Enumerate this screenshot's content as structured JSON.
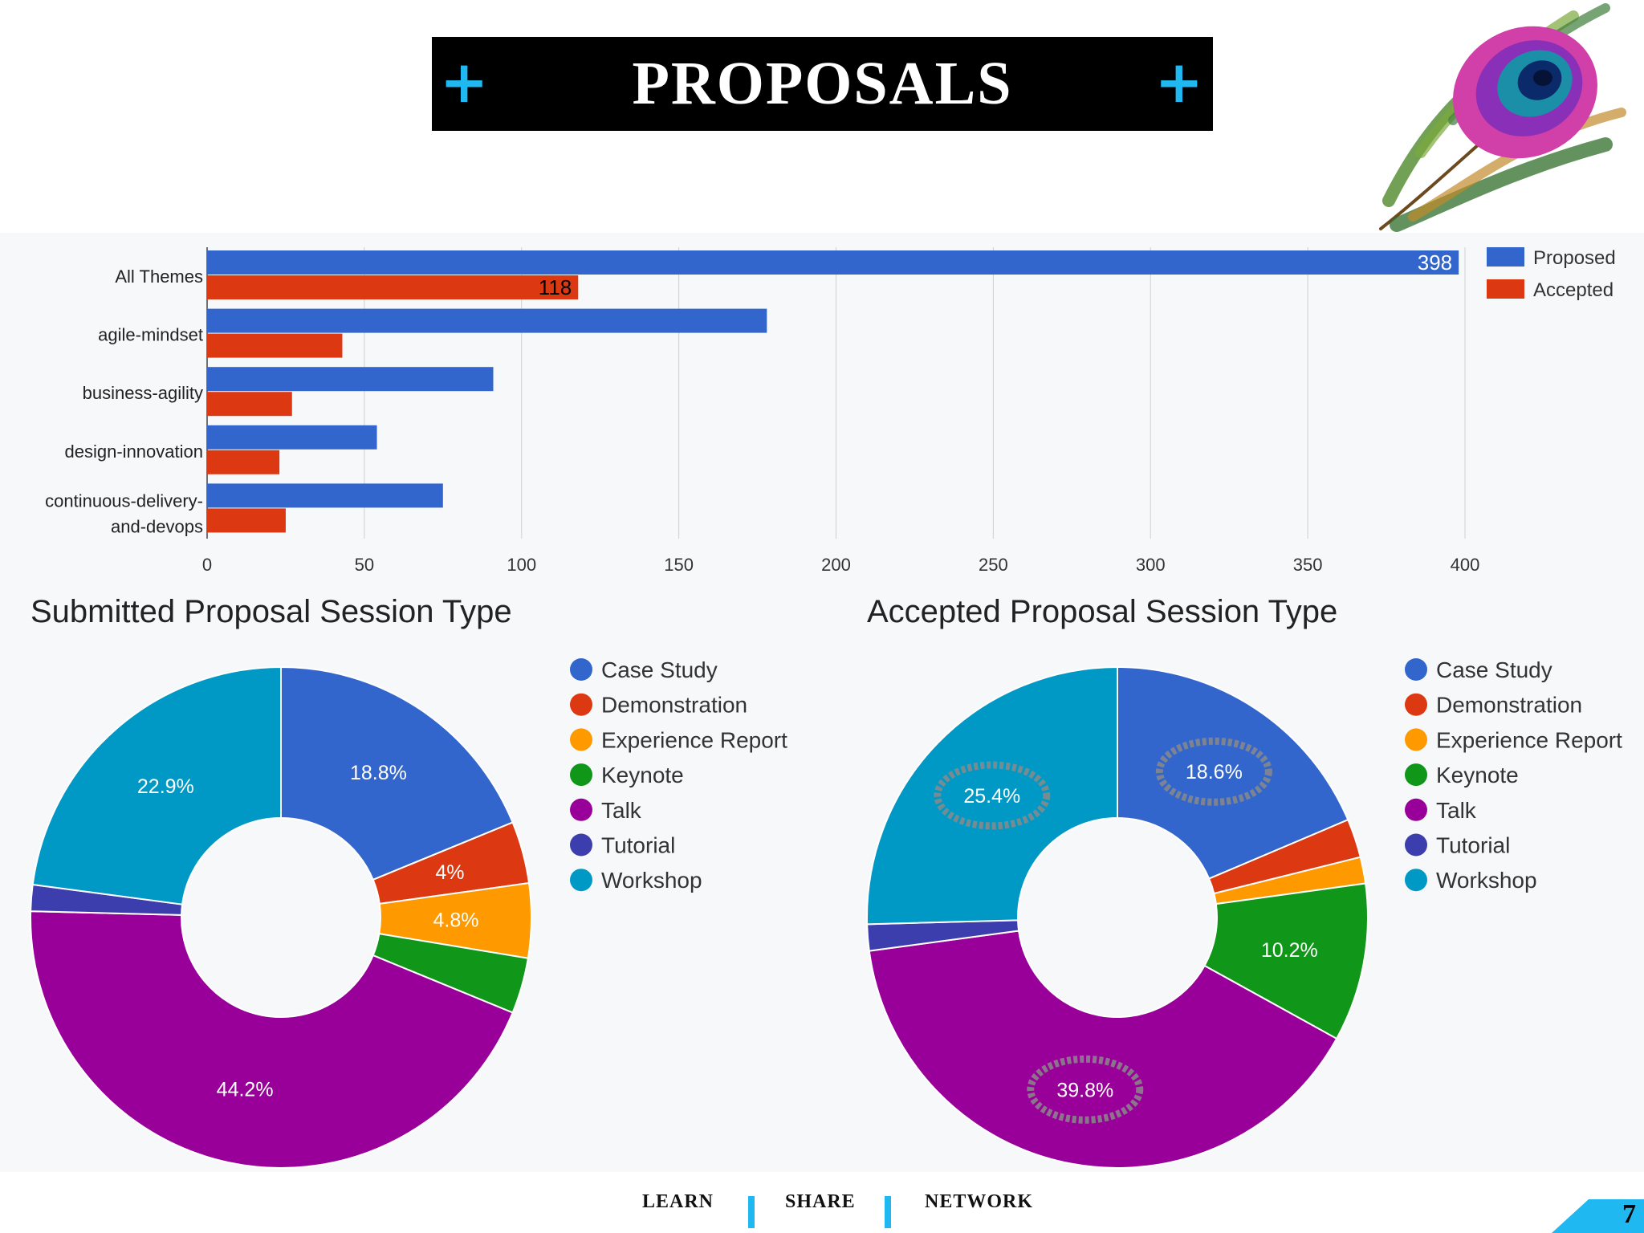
{
  "slide": {
    "title": "PROPOSALS",
    "plus_left": "+",
    "plus_right": "+",
    "page_number": "7"
  },
  "footer": {
    "items": [
      "LEARN",
      "SHARE",
      "NETWORK"
    ],
    "accent_color": "#1fb8f0"
  },
  "decoration": {
    "image": "peacock-feather"
  },
  "chart_data": [
    {
      "type": "bar",
      "orientation": "horizontal",
      "title": "",
      "categories": [
        "All Themes",
        "agile-mindset",
        "business-agility",
        "design-innovation",
        "continuous-delivery-and-devops"
      ],
      "category_lines": [
        [
          "All Themes"
        ],
        [
          "agile-mindset"
        ],
        [
          "business-agility"
        ],
        [
          "design-innovation"
        ],
        [
          "continuous-delivery-",
          "and-devops"
        ]
      ],
      "series": [
        {
          "name": "Proposed",
          "color": "#3366cc",
          "values": [
            398,
            178,
            91,
            54,
            75
          ]
        },
        {
          "name": "Accepted",
          "color": "#dc3912",
          "values": [
            118,
            43,
            27,
            23,
            25
          ]
        }
      ],
      "data_labels": [
        {
          "series": "Proposed",
          "category": "All Themes",
          "text": "398",
          "value": 398
        },
        {
          "series": "Accepted",
          "category": "All Themes",
          "text": "118",
          "value": 118
        }
      ],
      "xlim": [
        0,
        400
      ],
      "xticks": [
        0,
        50,
        100,
        150,
        200,
        250,
        300,
        350,
        400
      ],
      "grid": true,
      "legend_position": "top-right"
    },
    {
      "type": "pie",
      "donut": true,
      "title": "Submitted Proposal Session Type",
      "labels": [
        "Case Study",
        "Demonstration",
        "Experience Report",
        "Keynote",
        "Talk",
        "Tutorial",
        "Workshop"
      ],
      "colors": [
        "#3366cc",
        "#dc3912",
        "#ff9900",
        "#109618",
        "#990099",
        "#3b3eac",
        "#0099c6"
      ],
      "values": [
        18.8,
        4.0,
        4.8,
        3.6,
        44.2,
        1.7,
        22.9
      ],
      "slice_labels": [
        "18.8%",
        "4%",
        "4.8%",
        "",
        "44.2%",
        "",
        "22.9%"
      ],
      "highlighted": [],
      "legend_position": "right"
    },
    {
      "type": "pie",
      "donut": true,
      "title": "Accepted Proposal Session Type",
      "labels": [
        "Case Study",
        "Demonstration",
        "Experience Report",
        "Keynote",
        "Talk",
        "Tutorial",
        "Workshop"
      ],
      "colors": [
        "#3366cc",
        "#dc3912",
        "#ff9900",
        "#109618",
        "#990099",
        "#3b3eac",
        "#0099c6"
      ],
      "values": [
        18.6,
        2.5,
        1.7,
        10.2,
        39.8,
        1.7,
        25.4
      ],
      "slice_labels": [
        "18.6%",
        "",
        "",
        "10.2%",
        "39.8%",
        "",
        "25.4%"
      ],
      "highlighted": [
        "18.6%",
        "39.8%",
        "25.4%"
      ],
      "legend_position": "right"
    }
  ]
}
